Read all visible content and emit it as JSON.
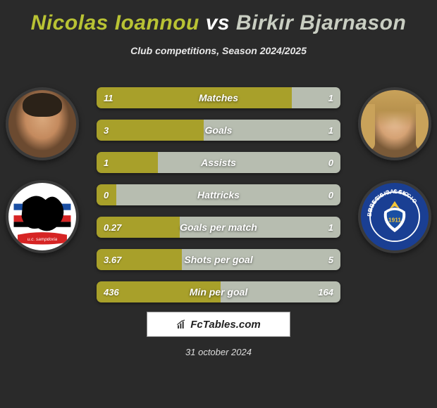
{
  "title": {
    "player1": "Nicolas Ioannou",
    "vs": "vs",
    "player2": "Birkir Bjarnason",
    "player1_color": "#b9c334",
    "player2_color": "#c9cec2"
  },
  "subtitle": "Club competitions, Season 2024/2025",
  "colors": {
    "left_bar": "#a8a02a",
    "right_bar": "#b7bdb0",
    "background": "#2a2a2a"
  },
  "stats": [
    {
      "label": "Matches",
      "left_value": "11",
      "right_value": "1",
      "left_pct": 80
    },
    {
      "label": "Goals",
      "left_value": "3",
      "right_value": "1",
      "left_pct": 44
    },
    {
      "label": "Assists",
      "left_value": "1",
      "right_value": "0",
      "left_pct": 25
    },
    {
      "label": "Hattricks",
      "left_value": "0",
      "right_value": "0",
      "left_pct": 8
    },
    {
      "label": "Goals per match",
      "left_value": "0.27",
      "right_value": "1",
      "left_pct": 34
    },
    {
      "label": "Shots per goal",
      "left_value": "3.67",
      "right_value": "5",
      "left_pct": 35
    },
    {
      "label": "Min per goal",
      "left_value": "436",
      "right_value": "164",
      "left_pct": 51
    }
  ],
  "logo_text": "FcTables.com",
  "date": "31 october 2024",
  "club_left": {
    "bg": "#ffffff",
    "stripes": [
      "#1a4fa3",
      "#d62424",
      "#000000"
    ],
    "banner": "#d62424",
    "banner_text": "u.c. sampdoria"
  },
  "club_right": {
    "bg": "#1a3f93",
    "ring": "#ffffff",
    "accent": "#f3c438",
    "text_top": "BRESCIA CALCIO"
  }
}
